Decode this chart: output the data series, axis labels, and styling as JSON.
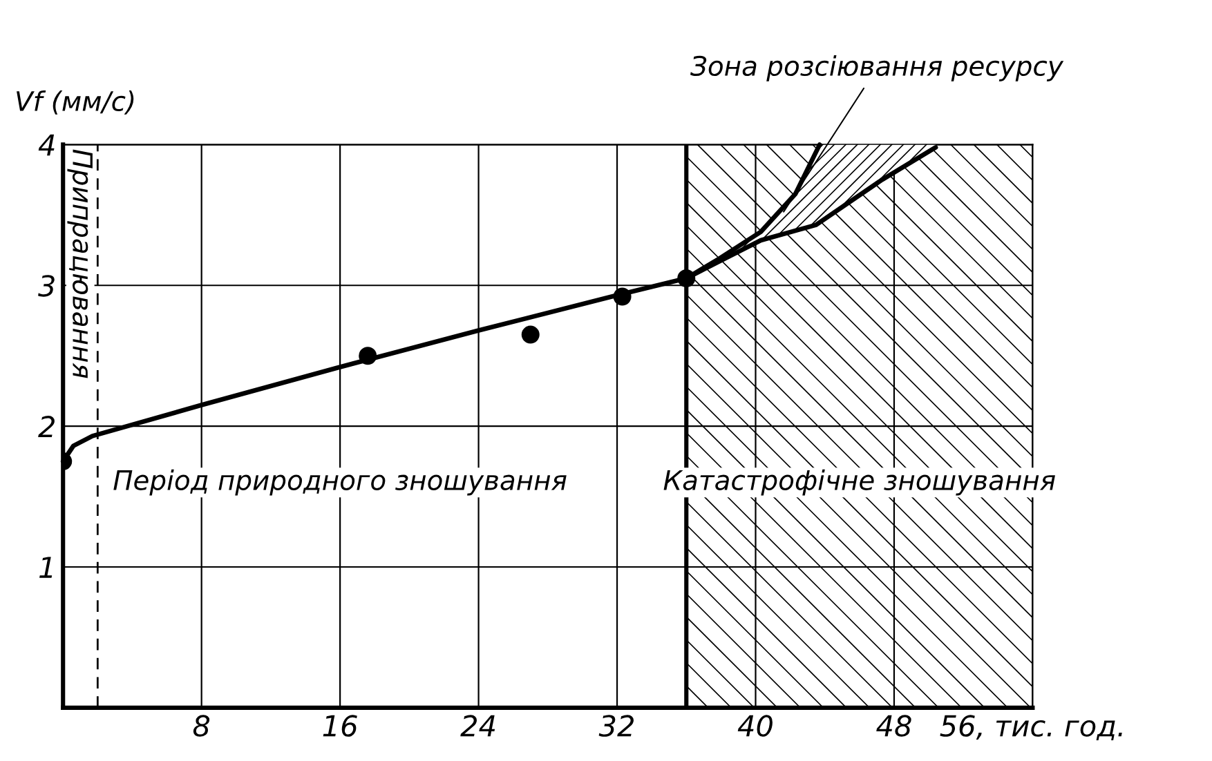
{
  "chart_data": {
    "type": "line",
    "ylabel": "Vf (мм/с)",
    "xlim": [
      0,
      56
    ],
    "ylim": [
      0,
      4
    ],
    "xticks": [
      8,
      16,
      24,
      32,
      40,
      48,
      {
        "value": 56,
        "label": "56, тис. год."
      }
    ],
    "yticks": [
      1,
      2,
      3,
      4
    ],
    "grid": true,
    "series": [
      {
        "type": "scatter",
        "color": "#000000",
        "marker": "circle",
        "x": [
          0,
          17.6,
          27,
          32.3,
          36
        ],
        "values": [
          1.75,
          2.5,
          2.65,
          2.92,
          3.05
        ]
      },
      {
        "color": "#000000",
        "x": [
          0,
          0.6,
          1.7,
          8,
          16,
          24,
          32,
          36
        ],
        "values": [
          1.75,
          1.86,
          1.93,
          2.15,
          2.42,
          2.68,
          2.93,
          3.05
        ]
      },
      {
        "color": "#000000",
        "x": [
          36,
          37.9,
          40.3,
          42.3,
          43.7
        ],
        "values": [
          3.05,
          3.19,
          3.38,
          3.65,
          4
        ]
      },
      {
        "color": "#000000",
        "x": [
          36,
          37.9,
          40.3,
          43.5,
          47.3,
          50.4
        ],
        "values": [
          3.05,
          3.17,
          3.32,
          3.43,
          3.75,
          3.98
        ]
      }
    ],
    "ref_lines": [
      {
        "axis": "x",
        "value": 2,
        "label": "Припрацювання",
        "line_style": "dashed",
        "color": "#000000"
      },
      {
        "axis": "x",
        "value": 36,
        "label": null,
        "line_style": "solid",
        "color": "#000000"
      }
    ],
    "bands": [
      {
        "axis": "x",
        "from": 36,
        "to": 56,
        "label": "Катастрофічне зношування",
        "color": "#000000"
      }
    ],
    "annotations": [
      "Період природного зношування",
      {
        "text": "Зона розсіювання ресурсу",
        "x": 41.5,
        "y": 3.5
      }
    ]
  }
}
